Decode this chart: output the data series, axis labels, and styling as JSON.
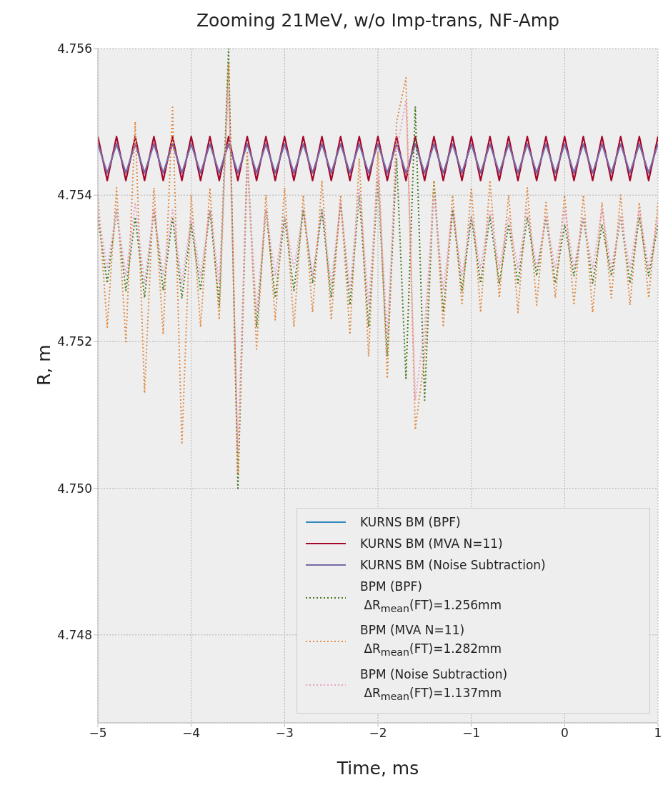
{
  "chart_data": {
    "type": "line",
    "title": "Zooming 21MeV, w/o Imp-trans, NF-Amp",
    "xlabel": "Time, ms",
    "ylabel": "R, m",
    "x": [
      -5,
      -4.9,
      -4.8,
      -4.7,
      -4.6,
      -4.5,
      -4.4,
      -4.3,
      -4.2,
      -4.1,
      -4,
      -3.9,
      -3.8,
      -3.7,
      -3.6,
      -3.5,
      -3.4,
      -3.3,
      -3.2,
      -3.1,
      -3,
      -2.9,
      -2.8,
      -2.7,
      -2.6,
      -2.5,
      -2.4,
      -2.3,
      -2.2,
      -2.1,
      -2,
      -1.9,
      -1.8,
      -1.7,
      -1.6,
      -1.5,
      -1.4,
      -1.3,
      -1.2,
      -1.1,
      -1,
      -0.9,
      -0.8,
      -0.7,
      -0.6,
      -0.5,
      -0.4,
      -0.3,
      -0.2,
      -0.1,
      0,
      0.1,
      0.2,
      0.3,
      0.4,
      0.5,
      0.6,
      0.7,
      0.8,
      0.9,
      1
    ],
    "xlim": [
      -5,
      1
    ],
    "xticks": [
      -5,
      -4,
      -3,
      -2,
      -1,
      0,
      1
    ],
    "ylim": [
      4.7468,
      4.756
    ],
    "yticks": [
      4.748,
      {
        "value": 4.75,
        "label": "4.750"
      },
      4.752,
      4.754,
      4.756
    ],
    "grid": true,
    "legend": "bottom right",
    "marker": "none",
    "series": [
      {
        "name": "KURNS BM (BPF)",
        "color": "#348abd",
        "line_style": "solid",
        "values": [
          null,
          null,
          null,
          null,
          null,
          null,
          null,
          null,
          null,
          null,
          null,
          null,
          null,
          null,
          null,
          null,
          null,
          null,
          null,
          null,
          null,
          null,
          null,
          null,
          null,
          null,
          null,
          null,
          null,
          null,
          null,
          null,
          null,
          null,
          null,
          null,
          null,
          null,
          null,
          null,
          null,
          null,
          null,
          null,
          null,
          null,
          null,
          null,
          null,
          null,
          null,
          null,
          null,
          null,
          null,
          null,
          null,
          null,
          null,
          null,
          null
        ]
      },
      {
        "name": "KURNS BM (MVA N=11)",
        "color": "#a60628",
        "line_style": "solid",
        "values": [
          4.7548,
          4.7542,
          4.7548,
          4.7542,
          4.7548,
          4.7542,
          4.7548,
          4.7542,
          4.7548,
          4.7542,
          4.7548,
          4.7542,
          4.7548,
          4.7542,
          4.7548,
          4.7542,
          4.7548,
          4.7542,
          4.7548,
          4.7542,
          4.7548,
          4.7542,
          4.7548,
          4.7542,
          4.7548,
          4.7542,
          4.7548,
          4.7542,
          4.7548,
          4.7542,
          4.7548,
          4.7542,
          4.7548,
          4.7542,
          4.7548,
          4.7542,
          4.7548,
          4.7542,
          4.7548,
          4.7542,
          4.7548,
          4.7542,
          4.7548,
          4.7542,
          4.7548,
          4.7542,
          4.7548,
          4.7542,
          4.7548,
          4.7542,
          4.7548,
          4.7542,
          4.7548,
          4.7542,
          4.7548,
          4.7542,
          4.7548,
          4.7542,
          4.7548,
          4.7542,
          4.7548
        ]
      },
      {
        "name": "KURNS BM (Noise Subtraction)",
        "color": "#7a68a6",
        "line_style": "solid",
        "values": [
          4.7547,
          4.7543,
          4.7547,
          4.7543,
          4.7547,
          4.7543,
          4.7547,
          4.7543,
          4.7547,
          4.7543,
          4.7547,
          4.7543,
          4.7547,
          4.7543,
          4.7547,
          4.7543,
          4.7547,
          4.7543,
          4.7547,
          4.7543,
          4.7547,
          4.7543,
          4.7547,
          4.7543,
          4.7547,
          4.7543,
          4.7547,
          4.7543,
          4.7547,
          4.7543,
          4.7547,
          4.7543,
          4.7547,
          4.7543,
          4.7547,
          4.7543,
          4.7547,
          4.7543,
          4.7547,
          4.7543,
          4.7547,
          4.7543,
          4.7547,
          4.7543,
          4.7547,
          4.7543,
          4.7547,
          4.7543,
          4.7547,
          4.7543,
          4.7547,
          4.7543,
          4.7547,
          4.7543,
          4.7547,
          4.7543,
          4.7547,
          4.7543,
          4.7547,
          4.7543,
          4.7547
        ]
      },
      {
        "name": "BPM (BPF)\n ΔR$_{mean}$(FT)=1.256mm",
        "color": "#467821",
        "line_style": "dotted",
        "values": [
          4.7537,
          4.7528,
          4.7538,
          4.7527,
          4.7537,
          4.7526,
          4.7538,
          4.7527,
          4.7537,
          4.7526,
          4.7536,
          4.7527,
          4.7538,
          4.7525,
          4.756,
          4.75,
          4.7545,
          4.7522,
          4.7538,
          4.7526,
          4.7537,
          4.7527,
          4.7538,
          4.7528,
          4.7538,
          4.7526,
          4.7539,
          4.7525,
          4.754,
          4.7522,
          4.7542,
          4.7518,
          4.7545,
          4.7515,
          4.7552,
          4.7512,
          4.7542,
          4.7524,
          4.7538,
          4.7527,
          4.7537,
          4.7528,
          4.7537,
          4.7528,
          4.7536,
          4.7528,
          4.7537,
          4.7529,
          4.7537,
          4.7528,
          4.7536,
          4.7529,
          4.7537,
          4.7528,
          4.7536,
          4.7529,
          4.7537,
          4.7528,
          4.7537,
          4.7529,
          4.7536
        ]
      },
      {
        "name": "BPM (MVA N=11)\n ΔR$_{mean}$(FT)=1.282mm",
        "color": "#e08b45",
        "line_style": "dotted",
        "values": [
          4.754,
          4.7522,
          4.7541,
          4.752,
          4.755,
          4.7513,
          4.7541,
          4.7521,
          4.7552,
          4.7506,
          4.754,
          4.7522,
          4.7541,
          4.7523,
          4.7558,
          4.7502,
          4.7546,
          4.7519,
          4.754,
          4.7523,
          4.7541,
          4.7522,
          4.754,
          4.7524,
          4.7542,
          4.7523,
          4.754,
          4.7521,
          4.7545,
          4.7518,
          4.7546,
          4.7515,
          4.755,
          4.7556,
          4.7508,
          4.7518,
          4.7542,
          4.7522,
          4.754,
          4.7525,
          4.7541,
          4.7524,
          4.7542,
          4.7526,
          4.754,
          4.7524,
          4.7541,
          4.7525,
          4.7539,
          4.7526,
          4.754,
          4.7525,
          4.754,
          4.7524,
          4.7539,
          4.7526,
          4.754,
          4.7525,
          4.7539,
          4.7526,
          4.7539
        ]
      },
      {
        "name": "BPM (Noise Subtraction)\n ΔR$_{mean}$(FT)=1.137mm",
        "color": "#e8a0c8",
        "line_style": "dotted",
        "values": [
          4.7538,
          4.753,
          4.7538,
          4.7529,
          4.7539,
          4.7528,
          4.7538,
          4.7529,
          4.7538,
          4.7528,
          4.7537,
          4.7529,
          4.7538,
          4.7528,
          4.7555,
          4.7505,
          4.7544,
          4.7524,
          4.7538,
          4.7529,
          4.7537,
          4.753,
          4.7538,
          4.7529,
          4.7538,
          4.7528,
          4.7539,
          4.7527,
          4.7541,
          4.7525,
          4.7543,
          4.7521,
          4.7546,
          4.7553,
          4.7512,
          4.7522,
          4.754,
          4.7527,
          4.7538,
          4.7529,
          4.7537,
          4.753,
          4.7538,
          4.753,
          4.7537,
          4.753,
          4.7538,
          4.753,
          4.7537,
          4.753,
          4.7538,
          4.753,
          4.7537,
          4.753,
          4.7538,
          4.753,
          4.7537,
          4.753,
          4.7538,
          4.753,
          4.7537
        ]
      }
    ]
  }
}
